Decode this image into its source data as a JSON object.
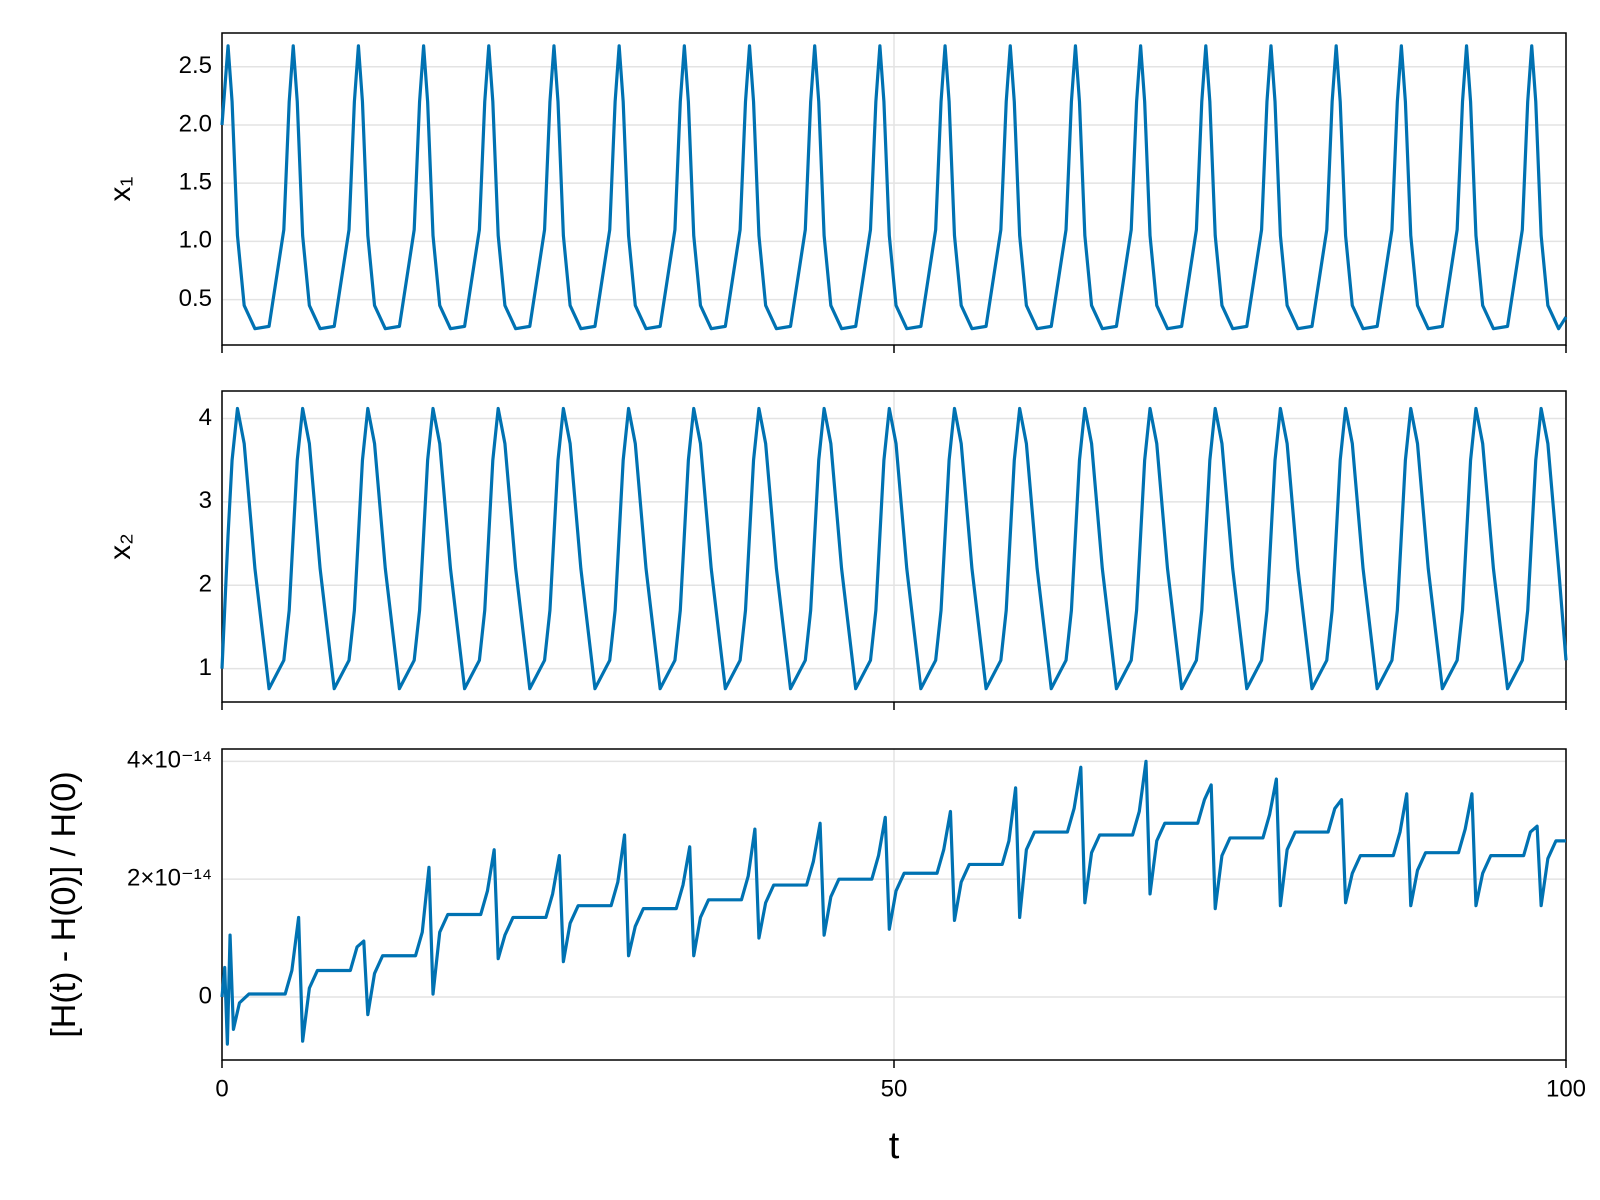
{
  "chart_data": [
    {
      "type": "line",
      "ylabel": "x₁",
      "color": "#0072b2",
      "grid": true,
      "xlim": [
        0,
        100
      ],
      "xticks": [
        0,
        50,
        100
      ],
      "ylim": [
        0.11,
        2.79
      ],
      "yticks": [
        0.5,
        {
          "value": 1,
          "label": "1.0"
        },
        1.5,
        {
          "value": 2,
          "label": "2.0"
        },
        2.5
      ],
      "x": [
        0,
        0.45,
        0.75,
        1.15,
        1.65,
        2.45,
        3.5,
        4.6,
        5.0,
        5.3,
        5.6,
        6.0,
        6.5,
        7.3,
        8.35,
        9.45,
        9.85,
        10.15,
        10.45,
        10.85,
        11.35,
        12.15,
        13.2,
        14.3,
        14.7,
        15.0,
        15.3,
        15.7,
        16.2,
        17.0,
        18.05,
        19.15,
        19.55,
        19.85,
        20.15,
        20.55,
        21.05,
        21.85,
        22.9,
        24.0,
        24.4,
        24.7,
        25.0,
        25.4,
        25.9,
        26.7,
        27.75,
        28.85,
        29.25,
        29.55,
        29.85,
        30.25,
        30.75,
        31.55,
        32.6,
        33.7,
        34.1,
        34.4,
        34.7,
        35.1,
        35.6,
        36.4,
        37.45,
        38.55,
        38.95,
        39.25,
        39.55,
        39.95,
        40.45,
        41.25,
        42.3,
        43.4,
        43.8,
        44.1,
        44.4,
        44.8,
        45.3,
        46.1,
        47.15,
        48.25,
        48.65,
        48.95,
        49.25,
        49.65,
        50.15,
        50.95,
        52.0,
        53.1,
        53.5,
        53.8,
        54.1,
        54.5,
        55.0,
        55.8,
        56.85,
        57.95,
        58.35,
        58.65,
        58.95,
        59.35,
        59.85,
        60.65,
        61.7,
        62.8,
        63.2,
        63.5,
        63.8,
        64.2,
        64.7,
        65.5,
        66.55,
        67.65,
        68.05,
        68.35,
        68.65,
        69.05,
        69.55,
        70.35,
        71.4,
        72.5,
        72.9,
        73.2,
        73.5,
        73.9,
        74.4,
        75.2,
        76.25,
        77.35,
        77.75,
        78.05,
        78.35,
        78.75,
        79.25,
        80.05,
        81.1,
        82.2,
        82.6,
        82.9,
        83.2,
        83.6,
        84.1,
        84.9,
        85.95,
        87.05,
        87.45,
        87.75,
        88.05,
        88.45,
        88.95,
        89.75,
        90.8,
        91.9,
        92.3,
        92.6,
        92.9,
        93.3,
        93.8,
        94.6,
        95.65,
        96.75,
        97.15,
        97.45,
        97.75,
        98.15,
        98.65,
        99.45,
        100
      ],
      "values": [
        2.0,
        2.68,
        2.2,
        1.05,
        0.45,
        0.25,
        0.27,
        1.1,
        2.2,
        2.68,
        2.2,
        1.05,
        0.45,
        0.25,
        0.27,
        1.1,
        2.2,
        2.68,
        2.2,
        1.05,
        0.45,
        0.25,
        0.27,
        1.1,
        2.2,
        2.68,
        2.2,
        1.05,
        0.45,
        0.25,
        0.27,
        1.1,
        2.2,
        2.68,
        2.2,
        1.05,
        0.45,
        0.25,
        0.27,
        1.1,
        2.2,
        2.68,
        2.2,
        1.05,
        0.45,
        0.25,
        0.27,
        1.1,
        2.2,
        2.68,
        2.2,
        1.05,
        0.45,
        0.25,
        0.27,
        1.1,
        2.2,
        2.68,
        2.2,
        1.05,
        0.45,
        0.25,
        0.27,
        1.1,
        2.2,
        2.68,
        2.2,
        1.05,
        0.45,
        0.25,
        0.27,
        1.1,
        2.2,
        2.68,
        2.2,
        1.05,
        0.45,
        0.25,
        0.27,
        1.1,
        2.2,
        2.68,
        2.2,
        1.05,
        0.45,
        0.25,
        0.27,
        1.1,
        2.2,
        2.68,
        2.2,
        1.05,
        0.45,
        0.25,
        0.27,
        1.1,
        2.2,
        2.68,
        2.2,
        1.05,
        0.45,
        0.25,
        0.27,
        1.1,
        2.2,
        2.68,
        2.2,
        1.05,
        0.45,
        0.25,
        0.27,
        1.1,
        2.2,
        2.68,
        2.2,
        1.05,
        0.45,
        0.25,
        0.27,
        1.1,
        2.2,
        2.68,
        2.2,
        1.05,
        0.45,
        0.25,
        0.27,
        1.1,
        2.2,
        2.68,
        2.2,
        1.05,
        0.45,
        0.25,
        0.27,
        1.1,
        2.2,
        2.68,
        2.2,
        1.05,
        0.45,
        0.25,
        0.27,
        1.1,
        2.2,
        2.68,
        2.2,
        1.05,
        0.45,
        0.25,
        0.27,
        1.1,
        2.2,
        2.68,
        2.2,
        1.05,
        0.45,
        0.25,
        0.27,
        1.1,
        2.2,
        2.68,
        2.2,
        1.05,
        0.45,
        0.25,
        0.35
      ]
    },
    {
      "type": "line",
      "ylabel": "x₂",
      "color": "#0072b2",
      "grid": true,
      "xlim": [
        0,
        100
      ],
      "xticks": [
        0,
        50,
        100
      ],
      "ylim": [
        0.6,
        4.33
      ],
      "yticks": [
        1,
        2,
        3,
        4
      ],
      "x": [
        0,
        0.45,
        0.75,
        1.15,
        1.65,
        2.45,
        3.5,
        4.6,
        5.0,
        5.3,
        5.6,
        6.0,
        6.5,
        7.3,
        8.35,
        9.45,
        9.85,
        10.15,
        10.45,
        10.85,
        11.35,
        12.15,
        13.2,
        14.3,
        14.7,
        15.0,
        15.3,
        15.7,
        16.2,
        17.0,
        18.05,
        19.15,
        19.55,
        19.85,
        20.15,
        20.55,
        21.05,
        21.85,
        22.9,
        24.0,
        24.4,
        24.7,
        25.0,
        25.4,
        25.9,
        26.7,
        27.75,
        28.85,
        29.25,
        29.55,
        29.85,
        30.25,
        30.75,
        31.55,
        32.6,
        33.7,
        34.1,
        34.4,
        34.7,
        35.1,
        35.6,
        36.4,
        37.45,
        38.55,
        38.95,
        39.25,
        39.55,
        39.95,
        40.45,
        41.25,
        42.3,
        43.4,
        43.8,
        44.1,
        44.4,
        44.8,
        45.3,
        46.1,
        47.15,
        48.25,
        48.65,
        48.95,
        49.25,
        49.65,
        50.15,
        50.95,
        52.0,
        53.1,
        53.5,
        53.8,
        54.1,
        54.5,
        55.0,
        55.8,
        56.85,
        57.95,
        58.35,
        58.65,
        58.95,
        59.35,
        59.85,
        60.65,
        61.7,
        62.8,
        63.2,
        63.5,
        63.8,
        64.2,
        64.7,
        65.5,
        66.55,
        67.65,
        68.05,
        68.35,
        68.65,
        69.05,
        69.55,
        70.35,
        71.4,
        72.5,
        72.9,
        73.2,
        73.5,
        73.9,
        74.4,
        75.2,
        76.25,
        77.35,
        77.75,
        78.05,
        78.35,
        78.75,
        79.25,
        80.05,
        81.1,
        82.2,
        82.6,
        82.9,
        83.2,
        83.6,
        84.1,
        84.9,
        85.95,
        87.05,
        87.45,
        87.75,
        88.05,
        88.45,
        88.95,
        89.75,
        90.8,
        91.9,
        92.3,
        92.6,
        92.9,
        93.3,
        93.8,
        94.6,
        95.65,
        96.75,
        97.15,
        97.45,
        97.75,
        98.15,
        98.65,
        99.45,
        100
      ],
      "values": [
        1.0,
        2.6,
        3.5,
        4.12,
        3.7,
        2.2,
        0.76,
        1.1,
        1.7,
        2.6,
        3.5,
        4.12,
        3.7,
        2.2,
        0.76,
        1.1,
        1.7,
        2.6,
        3.5,
        4.12,
        3.7,
        2.2,
        0.76,
        1.1,
        1.7,
        2.6,
        3.5,
        4.12,
        3.7,
        2.2,
        0.76,
        1.1,
        1.7,
        2.6,
        3.5,
        4.12,
        3.7,
        2.2,
        0.76,
        1.1,
        1.7,
        2.6,
        3.5,
        4.12,
        3.7,
        2.2,
        0.76,
        1.1,
        1.7,
        2.6,
        3.5,
        4.12,
        3.7,
        2.2,
        0.76,
        1.1,
        1.7,
        2.6,
        3.5,
        4.12,
        3.7,
        2.2,
        0.76,
        1.1,
        1.7,
        2.6,
        3.5,
        4.12,
        3.7,
        2.2,
        0.76,
        1.1,
        1.7,
        2.6,
        3.5,
        4.12,
        3.7,
        2.2,
        0.76,
        1.1,
        1.7,
        2.6,
        3.5,
        4.12,
        3.7,
        2.2,
        0.76,
        1.1,
        1.7,
        2.6,
        3.5,
        4.12,
        3.7,
        2.2,
        0.76,
        1.1,
        1.7,
        2.6,
        3.5,
        4.12,
        3.7,
        2.2,
        0.76,
        1.1,
        1.7,
        2.6,
        3.5,
        4.12,
        3.7,
        2.2,
        0.76,
        1.1,
        1.7,
        2.6,
        3.5,
        4.12,
        3.7,
        2.2,
        0.76,
        1.1,
        1.7,
        2.6,
        3.5,
        4.12,
        3.7,
        2.2,
        0.76,
        1.1,
        1.7,
        2.6,
        3.5,
        4.12,
        3.7,
        2.2,
        0.76,
        1.1,
        1.7,
        2.6,
        3.5,
        4.12,
        3.7,
        2.2,
        0.76,
        1.1,
        1.7,
        2.6,
        3.5,
        4.12,
        3.7,
        2.2,
        0.76,
        1.1,
        1.7,
        2.6,
        3.5,
        4.12,
        3.7,
        2.2,
        0.76,
        1.1,
        1.7,
        2.6,
        3.5,
        4.12,
        3.7,
        2.2,
        1.1
      ]
    },
    {
      "type": "line",
      "ylabel": "[H(t) - H(0)] / H(0)",
      "xlabel": "t",
      "color": "#0072b2",
      "grid": true,
      "xlim": [
        0,
        100
      ],
      "xticks": [
        0,
        50,
        100
      ],
      "ylim": [
        -1.07e-14,
        4.21e-14
      ],
      "yticks": [
        0,
        {
          "value": 2e-14,
          "label": "2×10⁻¹⁴"
        },
        {
          "value": 4e-14,
          "label": "4×10⁻¹⁴"
        }
      ],
      "x": [
        0,
        0.2,
        0.4,
        0.6,
        0.85,
        1.3,
        2.0,
        4.7,
        5.2,
        5.7,
        6.0,
        6.5,
        7.1,
        9.55,
        10.05,
        10.55,
        10.85,
        11.35,
        11.95,
        14.4,
        14.9,
        15.4,
        15.7,
        16.2,
        16.8,
        19.25,
        19.75,
        20.25,
        20.55,
        21.05,
        21.65,
        24.1,
        24.6,
        25.1,
        25.4,
        25.9,
        26.5,
        28.95,
        29.45,
        29.95,
        30.25,
        30.75,
        31.35,
        33.8,
        34.3,
        34.8,
        35.1,
        35.6,
        36.2,
        38.65,
        39.15,
        39.65,
        39.95,
        40.45,
        41.05,
        43.5,
        44.0,
        44.5,
        44.8,
        45.3,
        45.9,
        48.35,
        48.85,
        49.35,
        49.65,
        50.15,
        50.75,
        53.2,
        53.7,
        54.2,
        54.5,
        55.0,
        55.6,
        58.05,
        58.55,
        59.05,
        59.35,
        59.85,
        60.45,
        62.9,
        63.4,
        63.9,
        64.2,
        64.7,
        65.3,
        67.75,
        68.25,
        68.75,
        69.05,
        69.55,
        70.15,
        72.6,
        73.1,
        73.6,
        73.9,
        74.4,
        75.0,
        77.45,
        77.95,
        78.45,
        78.75,
        79.25,
        79.85,
        82.3,
        82.8,
        83.3,
        83.6,
        84.1,
        84.7,
        87.15,
        87.65,
        88.15,
        88.45,
        88.95,
        89.55,
        92.0,
        92.5,
        93.0,
        93.3,
        93.8,
        94.4,
        96.85,
        97.35,
        97.85,
        98.15,
        98.65,
        99.25,
        100
      ],
      "values": [
        0,
        5e-15,
        -8e-15,
        1.05e-14,
        -5.5e-15,
        -1e-15,
        5e-16,
        5e-16,
        4.5e-15,
        1.35e-14,
        -7.5e-15,
        1.5e-15,
        4.5e-15,
        4.5e-15,
        8.5e-15,
        9.5e-15,
        -3e-15,
        4e-15,
        7e-15,
        7e-15,
        1.1e-14,
        2.2e-14,
        5e-16,
        1.1e-14,
        1.4e-14,
        1.4e-14,
        1.8e-14,
        2.5e-14,
        6.5e-15,
        1.05e-14,
        1.35e-14,
        1.35e-14,
        1.75e-14,
        2.4e-14,
        6e-15,
        1.25e-14,
        1.55e-14,
        1.55e-14,
        1.95e-14,
        2.75e-14,
        7e-15,
        1.2e-14,
        1.5e-14,
        1.5e-14,
        1.9e-14,
        2.55e-14,
        7e-15,
        1.35e-14,
        1.65e-14,
        1.65e-14,
        2.05e-14,
        2.85e-14,
        1e-14,
        1.6e-14,
        1.9e-14,
        1.9e-14,
        2.3e-14,
        2.95e-14,
        1.05e-14,
        1.7e-14,
        2e-14,
        2e-14,
        2.4e-14,
        3.05e-14,
        1.15e-14,
        1.8e-14,
        2.1e-14,
        2.1e-14,
        2.5e-14,
        3.15e-14,
        1.3e-14,
        1.95e-14,
        2.25e-14,
        2.25e-14,
        2.65e-14,
        3.55e-14,
        1.35e-14,
        2.5e-14,
        2.8e-14,
        2.8e-14,
        3.2e-14,
        3.9e-14,
        1.6e-14,
        2.45e-14,
        2.75e-14,
        2.75e-14,
        3.15e-14,
        4e-14,
        1.75e-14,
        2.65e-14,
        2.95e-14,
        2.95e-14,
        3.35e-14,
        3.6e-14,
        1.5e-14,
        2.4e-14,
        2.7e-14,
        2.7e-14,
        3.1e-14,
        3.7e-14,
        1.55e-14,
        2.5e-14,
        2.8e-14,
        2.8e-14,
        3.2e-14,
        3.35e-14,
        1.6e-14,
        2.1e-14,
        2.4e-14,
        2.4e-14,
        2.8e-14,
        3.45e-14,
        1.55e-14,
        2.15e-14,
        2.45e-14,
        2.45e-14,
        2.85e-14,
        3.45e-14,
        1.55e-14,
        2.1e-14,
        2.4e-14,
        2.4e-14,
        2.8e-14,
        2.9e-14,
        1.55e-14,
        2.35e-14,
        2.65e-14,
        2.65e-14
      ]
    }
  ]
}
